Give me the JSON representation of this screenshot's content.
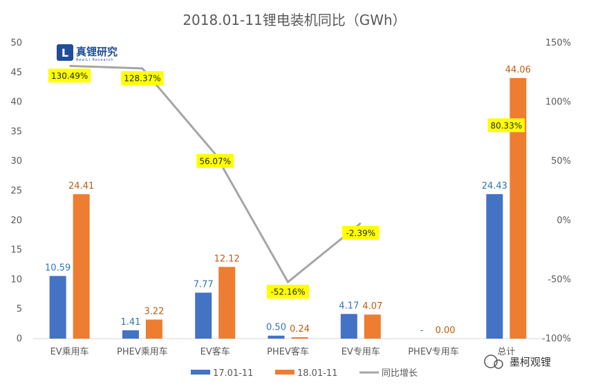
{
  "chart_data": {
    "type": "bar",
    "title": "2018.01-11锂电装机同比（GWh）",
    "categories": [
      "EV乘用车",
      "PHEV乘用车",
      "EV客车",
      "PHEV客车",
      "EV专用车",
      "PHEV专用车",
      "总计"
    ],
    "series": [
      {
        "name": "17.01-11",
        "color": "#4472c4",
        "values": [
          10.59,
          1.41,
          7.77,
          0.5,
          4.17,
          null,
          24.43
        ],
        "labels": [
          "10.59",
          "1.41",
          "7.77",
          "0.50",
          "4.17",
          "-",
          "24.43"
        ]
      },
      {
        "name": "18.01-11",
        "color": "#ed7d31",
        "values": [
          24.41,
          3.22,
          12.12,
          0.24,
          4.07,
          0.0,
          44.06
        ],
        "labels": [
          "24.41",
          "3.22",
          "12.12",
          "0.24",
          "4.07",
          "0.00",
          "44.06"
        ]
      }
    ],
    "line_series": {
      "name": "同比增长",
      "color": "#a5a5a5",
      "axis": "right",
      "values": [
        130.49,
        128.37,
        56.07,
        -52.16,
        -2.39,
        null,
        80.33
      ],
      "labels": [
        "130.49%",
        "128.37%",
        "56.07%",
        "-52.16%",
        "-2.39%",
        "",
        "80.33%"
      ],
      "label_bg": "#ffff00"
    },
    "ylim": [
      0,
      50
    ],
    "yticks": [
      0,
      5,
      10,
      15,
      20,
      25,
      30,
      35,
      40,
      45,
      50
    ],
    "y2lim": [
      -100,
      150
    ],
    "y2ticks": [
      -100,
      -50,
      0,
      50,
      100,
      150
    ],
    "y2tick_labels": [
      "-100%",
      "-50%",
      "0%",
      "50%",
      "100%",
      "150%"
    ],
    "grid": false,
    "legend_position": "bottom"
  },
  "logo": {
    "mark": "L",
    "text": "真锂研究",
    "subtext": "RealLi Research"
  },
  "watermark": {
    "text": "墨柯观锂"
  }
}
